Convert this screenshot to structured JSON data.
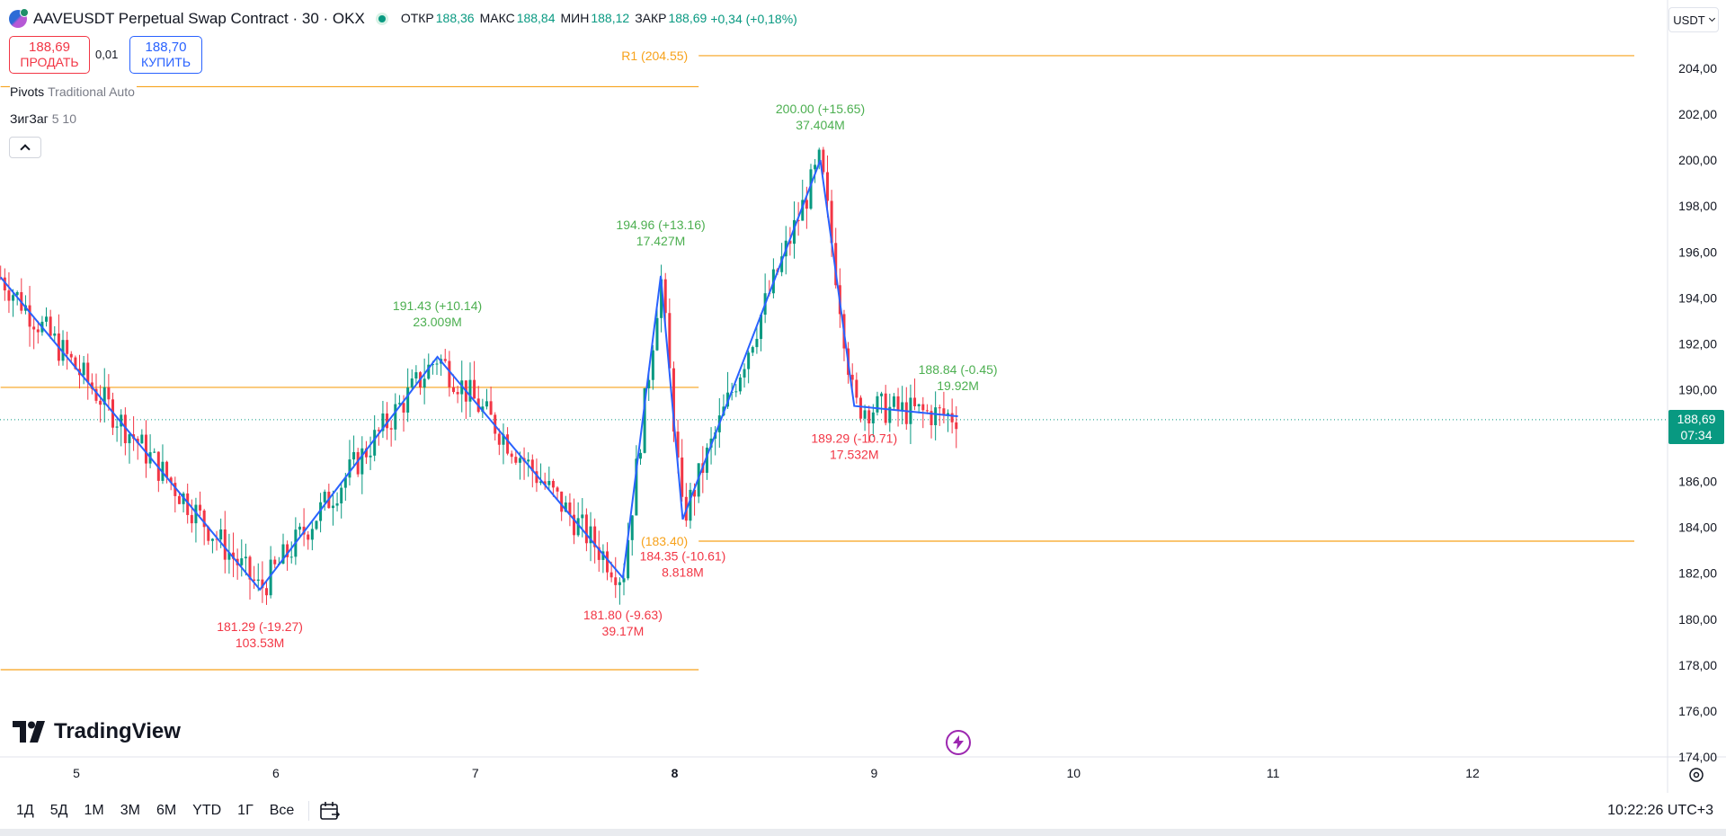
{
  "header": {
    "symbol_title": "AAVEUSDT Perpetual Swap Contract · 30 · OKX",
    "ohlc": [
      {
        "label": "ОТКР",
        "value": "188,36"
      },
      {
        "label": "МАКС",
        "value": "188,84"
      },
      {
        "label": "МИН",
        "value": "188,12"
      },
      {
        "label": "ЗАКР",
        "value": "188,69"
      }
    ],
    "change": "+0,34 (+0,18%)"
  },
  "trade": {
    "sell_price": "188,69",
    "sell_label": "ПРОДАТЬ",
    "spread": "0,01",
    "buy_price": "188,70",
    "buy_label": "КУПИТЬ"
  },
  "indicators": {
    "pivots_name": "Pivots",
    "pivots_params": "Traditional Auto",
    "zigzag_name": "ЗигЗаг",
    "zigzag_params": "5 10"
  },
  "currency": "USDT",
  "price_badge": {
    "price": "188,69",
    "countdown": "07:34"
  },
  "brand": "TradingView",
  "bottom": {
    "ranges": [
      "1Д",
      "5Д",
      "1М",
      "3М",
      "6М",
      "YTD",
      "1Г",
      "Все"
    ],
    "clock": "10:22:26 UTC+3"
  },
  "colors": {
    "up": "#089981",
    "down": "#f23645",
    "zigzag": "#2962ff",
    "pivot": "#f7a21b",
    "label_up": "#4caf50",
    "label_down": "#f23645"
  },
  "chart_data": {
    "type": "candlestick",
    "ylim": [
      173.5,
      205.5
    ],
    "y_ticks": [
      174,
      176,
      178,
      180,
      182,
      184,
      186,
      188,
      190,
      192,
      194,
      196,
      198,
      200,
      202,
      204
    ],
    "y_tick_labels": [
      "174,00",
      "176,00",
      "178,00",
      "180,00",
      "182,00",
      "184,00",
      "186,00",
      "188,00",
      "190,00",
      "192,00",
      "194,00",
      "196,00",
      "198,00",
      "200,00",
      "202,00",
      "204,00"
    ],
    "x_range": [
      4.62,
      13.0
    ],
    "x_ticks": [
      5,
      6,
      7,
      8,
      9,
      10,
      11,
      12
    ],
    "x_tick_labels": [
      "5",
      "6",
      "7",
      "8",
      "9",
      "10",
      "11",
      "12"
    ],
    "x_bold_tick": "8",
    "current_price": 188.69,
    "pivot_levels": [
      {
        "name": "R1",
        "value": 204.55,
        "label": "R1 (204.55)",
        "x_from": 8.12,
        "x_to": 13.0
      },
      {
        "name": "S1",
        "value": 183.4,
        "label": "(183.40)",
        "x_from": 8.12,
        "x_to": 13.0
      },
      {
        "name": "prev-upper",
        "value": 203.2,
        "label": "",
        "x_from": 4.62,
        "x_to": 8.12
      },
      {
        "name": "prev-mid",
        "value": 190.1,
        "label": "",
        "x_from": 4.62,
        "x_to": 8.12
      },
      {
        "name": "prev-lower",
        "value": 177.8,
        "label": "",
        "x_from": 4.62,
        "x_to": 8.12
      }
    ],
    "zigzag": [
      {
        "x": 4.62,
        "y": 194.9,
        "label": "",
        "volume": ""
      },
      {
        "x": 5.92,
        "y": 181.29,
        "label": "181.29 (-19.27)",
        "volume": "103.53M",
        "dir": "down"
      },
      {
        "x": 6.81,
        "y": 191.43,
        "label": "191.43 (+10.14)",
        "volume": "23.009M",
        "dir": "up"
      },
      {
        "x": 7.74,
        "y": 181.8,
        "label": "181.80 (-9.63)",
        "volume": "39.17M",
        "dir": "down"
      },
      {
        "x": 7.93,
        "y": 194.96,
        "label": "194.96 (+13.16)",
        "volume": "17.427M",
        "dir": "up"
      },
      {
        "x": 8.04,
        "y": 184.35,
        "label": "184.35 (-10.61)",
        "volume": "8.818M",
        "dir": "down"
      },
      {
        "x": 8.73,
        "y": 200.0,
        "label": "200.00 (+15.65)",
        "volume": "37.404M",
        "dir": "up"
      },
      {
        "x": 8.9,
        "y": 189.29,
        "label": "189.29 (-10.71)",
        "volume": "17.532M",
        "dir": "down"
      },
      {
        "x": 9.42,
        "y": 188.84,
        "label": "188.84 (-0.45)",
        "volume": "19.92M",
        "dir": "up"
      }
    ],
    "candles_note": "",
    "last_candle_x": 9.43
  }
}
